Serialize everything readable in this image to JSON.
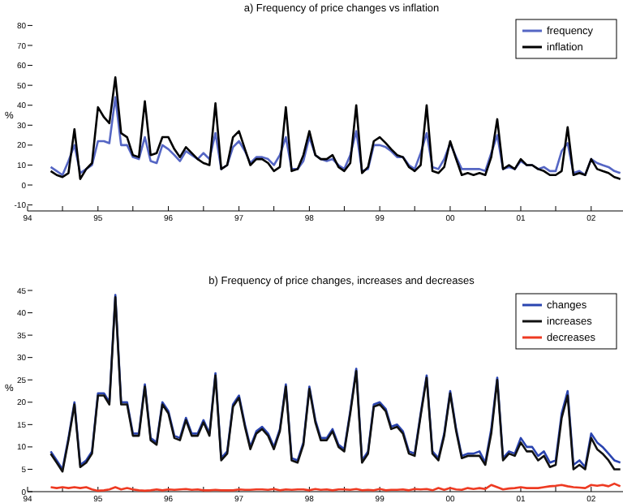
{
  "chart_data": [
    {
      "type": "line",
      "title": "a) Frequency of price changes vs inflation",
      "ylabel": "%",
      "legend": "top right",
      "x": [
        "1994-05",
        "1994-06",
        "1994-07",
        "1994-08",
        "1994-09",
        "1994-10",
        "1994-11",
        "1994-12",
        "1995-01",
        "1995-02",
        "1995-03",
        "1995-04",
        "1995-05",
        "1995-06",
        "1995-07",
        "1995-08",
        "1995-09",
        "1995-10",
        "1995-11",
        "1995-12",
        "1996-01",
        "1996-02",
        "1996-03",
        "1996-04",
        "1996-05",
        "1996-06",
        "1996-07",
        "1996-08",
        "1996-09",
        "1996-10",
        "1996-11",
        "1996-12",
        "1997-01",
        "1997-02",
        "1997-03",
        "1997-04",
        "1997-05",
        "1997-06",
        "1997-07",
        "1997-08",
        "1997-09",
        "1997-10",
        "1997-11",
        "1997-12",
        "1998-01",
        "1998-02",
        "1998-03",
        "1998-04",
        "1998-05",
        "1998-06",
        "1998-07",
        "1998-08",
        "1998-09",
        "1998-10",
        "1998-11",
        "1998-12",
        "1999-01",
        "1999-02",
        "1999-03",
        "1999-04",
        "1999-05",
        "1999-06",
        "1999-07",
        "1999-08",
        "1999-09",
        "1999-10",
        "1999-11",
        "1999-12",
        "2000-01",
        "2000-02",
        "2000-03",
        "2000-04",
        "2000-05",
        "2000-06",
        "2000-07",
        "2000-08",
        "2000-09",
        "2000-10",
        "2000-11",
        "2000-12",
        "2001-01",
        "2001-02",
        "2001-03",
        "2001-04",
        "2001-05",
        "2001-06",
        "2001-07",
        "2001-08",
        "2001-09",
        "2001-10",
        "2001-11",
        "2001-12",
        "2002-01",
        "2002-02",
        "2002-03",
        "2002-04",
        "2002-05",
        "2002-06"
      ],
      "xlim": [
        "1994-01",
        "2002-06-15"
      ],
      "xticks": [
        {
          "value": "1994-01",
          "label": "94"
        },
        {
          "value": "1994-07",
          "label": null
        },
        {
          "value": "1995-01",
          "label": "95"
        },
        {
          "value": "1995-07",
          "label": null
        },
        {
          "value": "1996-01",
          "label": "96"
        },
        {
          "value": "1996-07",
          "label": null
        },
        {
          "value": "1997-01",
          "label": "97"
        },
        {
          "value": "1997-07",
          "label": null
        },
        {
          "value": "1998-01",
          "label": "98"
        },
        {
          "value": "1998-07",
          "label": null
        },
        {
          "value": "1999-01",
          "label": "99"
        },
        {
          "value": "1999-07",
          "label": null
        },
        {
          "value": "2000-01",
          "label": "00"
        },
        {
          "value": "2000-07",
          "label": null
        },
        {
          "value": "2001-01",
          "label": "01"
        },
        {
          "value": "2001-07",
          "label": null
        },
        {
          "value": "2002-01",
          "label": "02"
        }
      ],
      "ylim": [
        -13,
        80
      ],
      "yticks": [
        -10,
        0,
        10,
        20,
        30,
        40,
        50,
        60,
        70,
        80
      ],
      "series": [
        {
          "name": "frequency",
          "color": "#5566c4",
          "values": [
            9,
            7,
            5,
            12,
            20,
            6,
            8,
            10,
            22,
            22,
            21,
            44,
            20,
            20,
            14,
            13,
            24,
            12,
            11,
            20,
            18,
            15,
            12,
            17,
            15,
            13,
            16,
            13,
            26,
            8,
            10,
            19,
            22,
            17,
            11,
            14,
            14,
            13,
            10,
            15,
            24,
            8,
            8,
            12,
            24,
            15,
            13,
            12,
            13,
            10,
            8,
            15,
            27,
            7,
            8,
            20,
            20,
            19,
            17,
            14,
            14,
            10,
            8,
            16,
            26,
            9,
            8,
            13,
            21,
            14,
            8,
            8,
            8,
            8,
            7,
            16,
            25,
            8,
            9,
            8,
            12,
            10,
            10,
            8,
            9,
            7,
            7,
            17,
            21,
            6,
            7,
            5,
            13,
            11,
            10,
            9,
            7,
            6
          ]
        },
        {
          "name": "inflation",
          "color": "#000000",
          "values": [
            7,
            5,
            4,
            6,
            28,
            3,
            8,
            11,
            39,
            34,
            31,
            54,
            26,
            24,
            15,
            14,
            42,
            15,
            16,
            24,
            24,
            18,
            14,
            19,
            16,
            13,
            11,
            10,
            41,
            8,
            10,
            24,
            27,
            18,
            10,
            13,
            13,
            11,
            7,
            9,
            39,
            7,
            8,
            15,
            27,
            15,
            13,
            13,
            15,
            9,
            7,
            11,
            40,
            6,
            9,
            22,
            24,
            21,
            18,
            15,
            14,
            9,
            7,
            10,
            40,
            7,
            6,
            9,
            22,
            13,
            5,
            6,
            5,
            6,
            5,
            14,
            33,
            8,
            10,
            8,
            13,
            10,
            10,
            8,
            7,
            5,
            5,
            7,
            29,
            5,
            6,
            5,
            13,
            8,
            7,
            6,
            4,
            3
          ]
        }
      ]
    },
    {
      "type": "line",
      "title": "b) Frequency of price changes, increases and decreases",
      "ylabel": "%",
      "legend": "top right",
      "x": [
        "1994-05",
        "1994-06",
        "1994-07",
        "1994-08",
        "1994-09",
        "1994-10",
        "1994-11",
        "1994-12",
        "1995-01",
        "1995-02",
        "1995-03",
        "1995-04",
        "1995-05",
        "1995-06",
        "1995-07",
        "1995-08",
        "1995-09",
        "1995-10",
        "1995-11",
        "1995-12",
        "1996-01",
        "1996-02",
        "1996-03",
        "1996-04",
        "1996-05",
        "1996-06",
        "1996-07",
        "1996-08",
        "1996-09",
        "1996-10",
        "1996-11",
        "1996-12",
        "1997-01",
        "1997-02",
        "1997-03",
        "1997-04",
        "1997-05",
        "1997-06",
        "1997-07",
        "1997-08",
        "1997-09",
        "1997-10",
        "1997-11",
        "1997-12",
        "1998-01",
        "1998-02",
        "1998-03",
        "1998-04",
        "1998-05",
        "1998-06",
        "1998-07",
        "1998-08",
        "1998-09",
        "1998-10",
        "1998-11",
        "1998-12",
        "1999-01",
        "1999-02",
        "1999-03",
        "1999-04",
        "1999-05",
        "1999-06",
        "1999-07",
        "1999-08",
        "1999-09",
        "1999-10",
        "1999-11",
        "1999-12",
        "2000-01",
        "2000-02",
        "2000-03",
        "2000-04",
        "2000-05",
        "2000-06",
        "2000-07",
        "2000-08",
        "2000-09",
        "2000-10",
        "2000-11",
        "2000-12",
        "2001-01",
        "2001-02",
        "2001-03",
        "2001-04",
        "2001-05",
        "2001-06",
        "2001-07",
        "2001-08",
        "2001-09",
        "2001-10",
        "2001-11",
        "2001-12",
        "2002-01",
        "2002-02",
        "2002-03",
        "2002-04",
        "2002-05",
        "2002-06"
      ],
      "xlim": [
        "1994-01",
        "2002-06-15"
      ],
      "xticks": [
        {
          "value": "1994-01",
          "label": "94"
        },
        {
          "value": "1994-07",
          "label": null
        },
        {
          "value": "1995-01",
          "label": "95"
        },
        {
          "value": "1995-07",
          "label": null
        },
        {
          "value": "1996-01",
          "label": "96"
        },
        {
          "value": "1996-07",
          "label": null
        },
        {
          "value": "1997-01",
          "label": "97"
        },
        {
          "value": "1997-07",
          "label": null
        },
        {
          "value": "1998-01",
          "label": "98"
        },
        {
          "value": "1998-07",
          "label": null
        },
        {
          "value": "1999-01",
          "label": "99"
        },
        {
          "value": "1999-07",
          "label": null
        },
        {
          "value": "2000-01",
          "label": "00"
        },
        {
          "value": "2000-07",
          "label": null
        },
        {
          "value": "2001-01",
          "label": "01"
        },
        {
          "value": "2001-07",
          "label": null
        },
        {
          "value": "2002-01",
          "label": "02"
        }
      ],
      "ylim": [
        0,
        45
      ],
      "yticks": [
        0,
        5,
        10,
        15,
        20,
        25,
        30,
        35,
        40,
        45
      ],
      "series": [
        {
          "name": "changes",
          "color": "#2a44b0",
          "values": [
            9,
            7,
            5,
            12,
            20,
            6,
            7,
            9,
            22,
            22,
            20,
            44,
            20,
            20,
            13,
            13,
            24,
            12,
            11,
            20,
            18,
            12.5,
            12,
            16.5,
            13,
            13,
            16,
            13,
            26.5,
            7.5,
            9,
            19.5,
            21.5,
            15,
            10,
            13.5,
            14.5,
            13,
            10,
            14,
            24,
            7.5,
            7,
            11,
            23.5,
            16,
            12,
            12,
            14,
            10.5,
            9.5,
            18,
            27.5,
            7,
            9,
            19.5,
            20,
            18.5,
            14.5,
            15,
            13.5,
            9,
            8.5,
            17.5,
            26,
            9,
            7.5,
            13,
            22.5,
            14,
            8,
            8.5,
            8.5,
            9,
            6.5,
            14,
            25.5,
            7.5,
            9,
            8.5,
            12,
            10,
            10,
            8,
            9,
            6.5,
            7,
            17.5,
            22.5,
            6,
            7,
            5.5,
            13,
            11,
            10,
            8.5,
            7,
            6.5
          ]
        },
        {
          "name": "increases",
          "color": "#111111",
          "values": [
            8.5,
            6.5,
            4.5,
            11.5,
            19.5,
            5.5,
            6.5,
            8.5,
            21.5,
            21.5,
            19.5,
            43.5,
            19.5,
            19.5,
            12.5,
            12.5,
            23.5,
            11.5,
            10.5,
            19.5,
            17.5,
            12,
            11.5,
            16,
            12.5,
            12.5,
            15.5,
            12.5,
            26,
            7,
            8.5,
            19,
            21,
            14.5,
            9.5,
            13,
            14,
            12.5,
            9.5,
            13.5,
            23.5,
            7,
            6.5,
            10.5,
            23,
            15.5,
            11.5,
            11.5,
            13.5,
            10,
            9,
            17.5,
            27,
            6.5,
            8.5,
            19,
            19.5,
            18,
            14,
            14.5,
            13,
            8.5,
            8,
            17,
            25.5,
            8.5,
            7,
            12.5,
            22,
            13.5,
            7.5,
            8,
            8,
            8,
            6,
            13,
            25,
            7,
            8.5,
            8,
            11,
            9,
            9,
            7,
            8,
            5.5,
            6,
            16.5,
            21.5,
            5,
            6,
            5,
            12,
            9.5,
            8.5,
            7,
            5,
            5
          ]
        },
        {
          "name": "decreases",
          "color": "#ee3a22",
          "values": [
            1,
            0.8,
            1,
            0.8,
            1,
            0.8,
            1,
            0.5,
            0.2,
            0.3,
            0.5,
            1,
            0.5,
            0.8,
            0.5,
            0.3,
            0.2,
            0.3,
            0.5,
            0.3,
            0.5,
            0.4,
            0.5,
            0.6,
            0.4,
            0.5,
            0.3,
            0.3,
            0.4,
            0.3,
            0.3,
            0.3,
            0.5,
            0.4,
            0.4,
            0.5,
            0.5,
            0.4,
            0.6,
            0.3,
            0.5,
            0.4,
            0.5,
            0.5,
            0.3,
            0.6,
            0.4,
            0.5,
            0.3,
            0.5,
            0.5,
            0.4,
            0.6,
            0.3,
            0.4,
            0.3,
            0.6,
            0.3,
            0.4,
            0.4,
            0.5,
            0.3,
            0.6,
            0.5,
            0.6,
            0.3,
            0.8,
            0.4,
            0.8,
            0.5,
            0.4,
            0.8,
            0.6,
            0.8,
            0.6,
            1.5,
            1,
            0.5,
            0.7,
            0.8,
            1,
            0.8,
            0.8,
            0.8,
            1,
            1.2,
            1.3,
            1.5,
            1.2,
            1,
            0.9,
            0.8,
            1.5,
            1.3,
            1.5,
            1.2,
            1.8,
            1.2
          ]
        }
      ]
    }
  ]
}
